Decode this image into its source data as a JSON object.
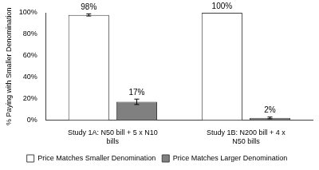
{
  "chart_data": {
    "type": "bar",
    "y_label": "% Paying with Smaller Denomination",
    "categories": [
      [
        "Study 1A: N50 bill + 5 x N10",
        "bills"
      ],
      [
        "Study 1B: N200 bill + 4 x",
        "N50 bills"
      ]
    ],
    "series": [
      {
        "name": "Price Matches Smaller Denomination",
        "color": "#ffffff",
        "values": [
          98,
          100
        ],
        "value_labels": [
          "98%",
          "100%"
        ],
        "errors": [
          1,
          0
        ]
      },
      {
        "name": "Price Matches Larger Denomination",
        "color": "#808080",
        "values": [
          17,
          2
        ],
        "value_labels": [
          "17%",
          "2%"
        ],
        "errors": [
          2.5,
          0.8
        ]
      }
    ],
    "ylim": [
      0,
      100
    ],
    "yticks": [
      {
        "value": 0,
        "label": "0%"
      },
      {
        "value": 20,
        "label": "20%"
      },
      {
        "value": 40,
        "label": "40%"
      },
      {
        "value": 60,
        "label": "60%"
      },
      {
        "value": 80,
        "label": "80%"
      },
      {
        "value": 100,
        "label": "100%"
      }
    ],
    "grid": false,
    "legend": "bottom",
    "data_labels": true
  }
}
